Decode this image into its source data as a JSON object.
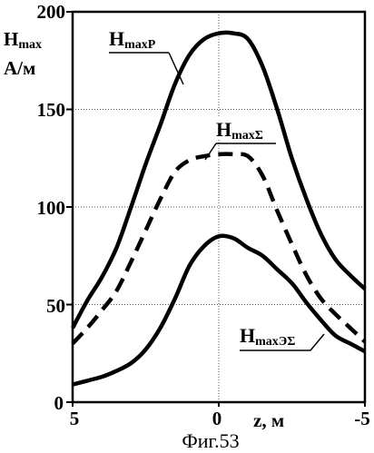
{
  "caption": "Фиг.53",
  "chart_data": {
    "type": "line",
    "xlabel": "z, м",
    "ylabel_line1": "H",
    "ylabel_sub": "max",
    "ylabel_line2": "А/м",
    "xlim": [
      5,
      -5
    ],
    "ylim": [
      0,
      200
    ],
    "x_ticks": [
      "5",
      "0",
      "-5"
    ],
    "y_ticks": [
      "0",
      "50",
      "100",
      "150",
      "200"
    ],
    "grid": true,
    "series": [
      {
        "name": "H_maxP",
        "label_main": "H",
        "label_sub": "maxP",
        "style": "solid",
        "x": [
          5,
          4.5,
          4,
          3.5,
          3,
          2.5,
          2,
          1.5,
          1,
          0.5,
          0,
          -0.5,
          -1,
          -1.5,
          -2,
          -2.5,
          -3,
          -3.5,
          -4,
          -4.5,
          -5
        ],
        "y": [
          38,
          52,
          64,
          79,
          100,
          122,
          142,
          163,
          178,
          186,
          189,
          189,
          186,
          172,
          150,
          125,
          104,
          86,
          73,
          65,
          58
        ]
      },
      {
        "name": "H_maxΣ",
        "label_main": "H",
        "label_sub": "maxΣ",
        "style": "dashed",
        "x": [
          5,
          4.5,
          4,
          3.5,
          3,
          2.5,
          2,
          1.5,
          1,
          0.5,
          0,
          -0.5,
          -1,
          -1.5,
          -2,
          -2.5,
          -3,
          -3.5,
          -4,
          -4.5,
          -5
        ],
        "y": [
          30,
          38,
          47,
          57,
          72,
          88,
          104,
          118,
          124,
          126,
          127,
          127,
          126,
          116,
          98,
          81,
          65,
          53,
          45,
          38,
          31
        ]
      },
      {
        "name": "H_maxЭΣ",
        "label_main": "H",
        "label_sub": "maxЭΣ",
        "style": "solid",
        "x": [
          5,
          4.5,
          4,
          3.5,
          3,
          2.5,
          2,
          1.5,
          1,
          0.5,
          0,
          -0.5,
          -1,
          -1.5,
          -2,
          -2.5,
          -3,
          -3.5,
          -4,
          -4.5,
          -5
        ],
        "y": [
          9,
          11,
          13,
          16,
          20,
          27,
          38,
          53,
          70,
          80,
          85,
          84,
          79,
          75,
          68,
          61,
          51,
          42,
          34,
          30,
          26
        ]
      }
    ]
  }
}
